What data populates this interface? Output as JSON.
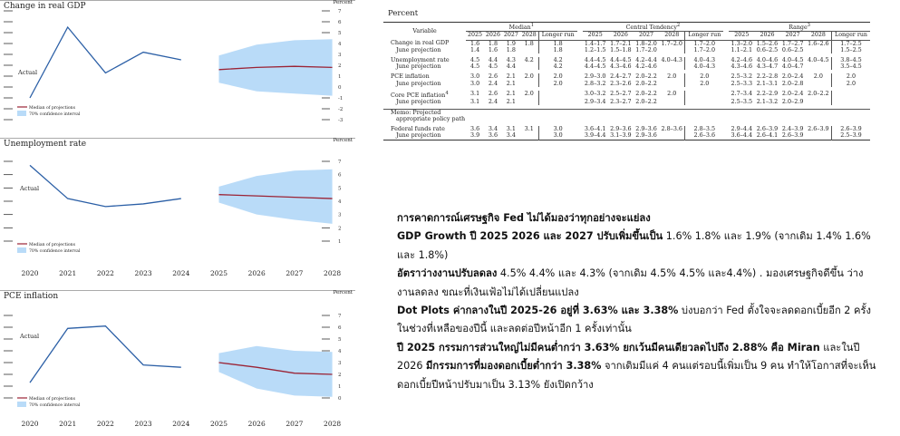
{
  "charts": {
    "gdp": {
      "title": "Change in real GDP",
      "percent_label": "Percent",
      "actual_label": "Actual",
      "legend_median": "Median of projections",
      "legend_ci": "70% confidence interval",
      "y_ticks": [
        "7",
        "6",
        "5",
        "4",
        "3",
        "2",
        "1",
        "0",
        "-1",
        "-2",
        "-3"
      ]
    },
    "unemployment": {
      "title": "Unemployment rate",
      "percent_label": "Percent",
      "actual_label": "Actual",
      "legend_median": "Median of projections",
      "legend_ci": "70% confidence interval",
      "y_ticks": [
        "7",
        "6",
        "5",
        "4",
        "3",
        "2",
        "1"
      ]
    },
    "pce": {
      "title": "PCE inflation",
      "percent_label": "Percent",
      "actual_label": "Actual",
      "legend_median": "Median of projections",
      "legend_ci": "70% confidence interval",
      "y_ticks": [
        "7",
        "6",
        "5",
        "4",
        "3",
        "2",
        "1",
        "0"
      ]
    },
    "x_years": [
      "2020",
      "2021",
      "2022",
      "2023",
      "2024",
      "2025",
      "2026",
      "2027",
      "2028"
    ]
  },
  "chart_data": [
    {
      "type": "line",
      "title": "Change in real GDP",
      "ylabel": "Percent",
      "ylim": [
        -3,
        7
      ],
      "series": [
        {
          "name": "Actual",
          "x": [
            2020,
            2021,
            2022,
            2023,
            2024
          ],
          "values": [
            -1.0,
            5.5,
            1.3,
            3.2,
            2.5
          ]
        },
        {
          "name": "Median of projections",
          "x": [
            2025,
            2026,
            2027,
            2028
          ],
          "values": [
            1.6,
            1.8,
            1.9,
            1.8
          ]
        }
      ],
      "confidence_interval": {
        "name": "70% confidence interval",
        "x": [
          2025,
          2026,
          2027,
          2028
        ],
        "low": [
          0.4,
          -0.4,
          -0.6,
          -0.8
        ],
        "high": [
          2.9,
          3.9,
          4.3,
          4.4
        ]
      }
    },
    {
      "type": "line",
      "title": "Unemployment rate",
      "ylabel": "Percent",
      "ylim": [
        1,
        7
      ],
      "series": [
        {
          "name": "Actual",
          "x": [
            2020,
            2021,
            2022,
            2023,
            2024
          ],
          "values": [
            6.7,
            4.2,
            3.6,
            3.8,
            4.2
          ]
        },
        {
          "name": "Median of projections",
          "x": [
            2025,
            2026,
            2027,
            2028
          ],
          "values": [
            4.5,
            4.4,
            4.3,
            4.2
          ]
        }
      ],
      "confidence_interval": {
        "name": "70% confidence interval",
        "x": [
          2025,
          2026,
          2027,
          2028
        ],
        "low": [
          3.9,
          3.0,
          2.6,
          2.3
        ],
        "high": [
          5.1,
          5.9,
          6.3,
          6.4
        ]
      }
    },
    {
      "type": "line",
      "title": "PCE inflation",
      "ylabel": "Percent",
      "ylim": [
        0,
        7
      ],
      "series": [
        {
          "name": "Actual",
          "x": [
            2020,
            2021,
            2022,
            2023,
            2024
          ],
          "values": [
            1.3,
            5.9,
            6.1,
            2.8,
            2.6
          ]
        },
        {
          "name": "Median of projections",
          "x": [
            2025,
            2026,
            2027,
            2028
          ],
          "values": [
            3.0,
            2.6,
            2.1,
            2.0
          ]
        }
      ],
      "confidence_interval": {
        "name": "70% confidence interval",
        "x": [
          2025,
          2026,
          2027,
          2028
        ],
        "low": [
          2.2,
          0.8,
          0.2,
          0.1
        ],
        "high": [
          3.8,
          4.4,
          4.0,
          3.9
        ]
      }
    }
  ],
  "table": {
    "caption": "Percent",
    "variable_header": "Variable",
    "groups": [
      {
        "label": "Median",
        "sup": "1"
      },
      {
        "label": "Central Tendency",
        "sup": "2"
      },
      {
        "label": "Range",
        "sup": "3"
      }
    ],
    "median_cols": [
      "2025",
      "2026",
      "2027",
      "2028",
      "Longer run"
    ],
    "ct_cols": [
      "2025",
      "2026",
      "2027",
      "2028",
      "Longer run"
    ],
    "range_cols": [
      "2025",
      "2026",
      "2027",
      "2028",
      "Longer run"
    ],
    "rows": [
      {
        "label": "Change in real GDP",
        "median": [
          "1.6",
          "1.8",
          "1.9",
          "1.8",
          "1.8"
        ],
        "ct": [
          "1.4–1.7",
          "1.7–2.1",
          "1.8–2.0",
          "1.7–2.0",
          "1.7–2.0"
        ],
        "range": [
          "1.3–2.0",
          "1.5–2.6",
          "1.7–2.7",
          "1.6–2.6",
          "1.7–2.5"
        ],
        "sub": false
      },
      {
        "label": "June projection",
        "median": [
          "1.4",
          "1.6",
          "1.8",
          "",
          "1.8"
        ],
        "ct": [
          "1.2–1.5",
          "1.5–1.8",
          "1.7–2.0",
          "",
          "1.7–2.0"
        ],
        "range": [
          "1.1–2.1",
          "0.6–2.5",
          "0.6–2.5",
          "",
          "1.5–2.5"
        ],
        "sub": true
      },
      {
        "sep": true
      },
      {
        "label": "Unemployment rate",
        "median": [
          "4.5",
          "4.4",
          "4.3",
          "4.2",
          "4.2"
        ],
        "ct": [
          "4.4–4.5",
          "4.4–4.5",
          "4.2–4.4",
          "4.0–4.3",
          "4.0–4.3"
        ],
        "range": [
          "4.2–4.6",
          "4.0–4.6",
          "4.0–4.5",
          "4.0–4.5",
          "3.8–4.5"
        ],
        "sub": false
      },
      {
        "label": "June projection",
        "median": [
          "4.5",
          "4.5",
          "4.4",
          "",
          "4.2"
        ],
        "ct": [
          "4.4–4.5",
          "4.3–4.6",
          "4.2–4.6",
          "",
          "4.0–4.3"
        ],
        "range": [
          "4.3–4.6",
          "4.3–4.7",
          "4.0–4.7",
          "",
          "3.5–4.5"
        ],
        "sub": true
      },
      {
        "sep": true
      },
      {
        "label": "PCE inflation",
        "median": [
          "3.0",
          "2.6",
          "2.1",
          "2.0",
          "2.0"
        ],
        "ct": [
          "2.9–3.0",
          "2.4–2.7",
          "2.0–2.2",
          "2.0",
          "2.0"
        ],
        "range": [
          "2.5–3.2",
          "2.2–2.8",
          "2.0–2.4",
          "2.0",
          "2.0"
        ],
        "sub": false
      },
      {
        "label": "June projection",
        "median": [
          "3.0",
          "2.4",
          "2.1",
          "",
          "2.0"
        ],
        "ct": [
          "2.8–3.2",
          "2.3–2.6",
          "2.0–2.2",
          "",
          "2.0"
        ],
        "range": [
          "2.5–3.3",
          "2.1–3.1",
          "2.0–2.8",
          "",
          "2.0"
        ],
        "sub": true
      },
      {
        "sep": true
      },
      {
        "label": "Core PCE inflation",
        "sup": "4",
        "median": [
          "3.1",
          "2.6",
          "2.1",
          "2.0",
          ""
        ],
        "ct": [
          "3.0–3.2",
          "2.5–2.7",
          "2.0–2.2",
          "2.0",
          ""
        ],
        "range": [
          "2.7–3.4",
          "2.2–2.9",
          "2.0–2.4",
          "2.0–2.2",
          ""
        ],
        "sub": false
      },
      {
        "label": "June projection",
        "median": [
          "3.1",
          "2.4",
          "2.1",
          "",
          ""
        ],
        "ct": [
          "2.9–3.4",
          "2.3–2.7",
          "2.0–2.2",
          "",
          ""
        ],
        "range": [
          "2.5–3.5",
          "2.1–3.2",
          "2.0–2.9",
          "",
          ""
        ],
        "sub": true
      },
      {
        "sep": true
      },
      {
        "memo": true,
        "label": "Memo: Projected",
        "label2": "appropriate policy path"
      },
      {
        "sep": true
      },
      {
        "label": "Federal funds rate",
        "median": [
          "3.6",
          "3.4",
          "3.1",
          "3.1",
          "3.0"
        ],
        "ct": [
          "3.6–4.1",
          "2.9–3.6",
          "2.9–3.6",
          "2.8–3.6",
          "2.8–3.5"
        ],
        "range": [
          "2.9–4.4",
          "2.6–3.9",
          "2.4–3.9",
          "2.6–3.9",
          "2.6–3.9"
        ],
        "sub": false
      },
      {
        "label": "June projection",
        "median": [
          "3.9",
          "3.6",
          "3.4",
          "",
          "3.0"
        ],
        "ct": [
          "3.9–4.4",
          "3.1–3.9",
          "2.9–3.6",
          "",
          "2.6–3.6"
        ],
        "range": [
          "3.6–4.4",
          "2.6–4.1",
          "2.6–3.9",
          "",
          "2.5–3.9"
        ],
        "sub": true
      }
    ]
  },
  "commentary": {
    "heading": "การคาดการณ์เศรษฐกิจ Fed ไม่ได้มองว่าทุกอย่างจะแย่ลง",
    "p1_bold": "GDP Growth ปี 2025 2026 และ 2027 ปรับเพิ่มขึ้นเป็น",
    "p1_rest": " 1.6% 1.8% และ 1.9% (จากเดิม 1.4% 1.6% และ 1.8%)",
    "p2_bold": "อัตราว่างงานปรับลดลง",
    "p2_rest": " 4.5% 4.4% และ 4.3% (จากเดิม 4.5% 4.5% และ4.4%) . มองเศรษฐกิจดีขึ้น ว่างงานลดลง ขณะที่เงินเฟ้อไม่ได้เปลี่ยนแปลง",
    "p3_bold": "Dot Plots ค่ากลางในปี 2025-26 อยู่ที่ 3.63% และ 3.38%",
    "p3_rest": " บ่งบอกว่า Fed ตั้งใจจะลดดอกเบี้ยอีก 2 ครั้งในช่วงที่เหลือของปีนี้ และลดต่อปีหน้าอีก 1 ครั้งเท่านั้น",
    "p4_bold": "ปี 2025 กรรมการส่วนใหญ่ไม่มีคนต่ำกว่า 3.63% ยกเว้นมีคนเดียวลดไปถึง 2.88% คือ Miran",
    "p4_mid": " และในปี 2026 ",
    "p4_bold2": "มีกรรมการที่มองดอกเบี้ยต่ำกว่า 3.38%",
    "p4_rest": " จากเดิมมีแค่ 4 คนแต่รอบนี้เพิ่มเป็น 9 คน ทำให้โอกาสที่จะเห็นดอกเบี้ยปีหน้าปรับมาเป็น 3.13% ยังเปิดกว้าง"
  },
  "colors": {
    "ci_fill": "#b9dbf8",
    "median_line": "#9b2335",
    "actual_line": "#2b5fa6"
  }
}
